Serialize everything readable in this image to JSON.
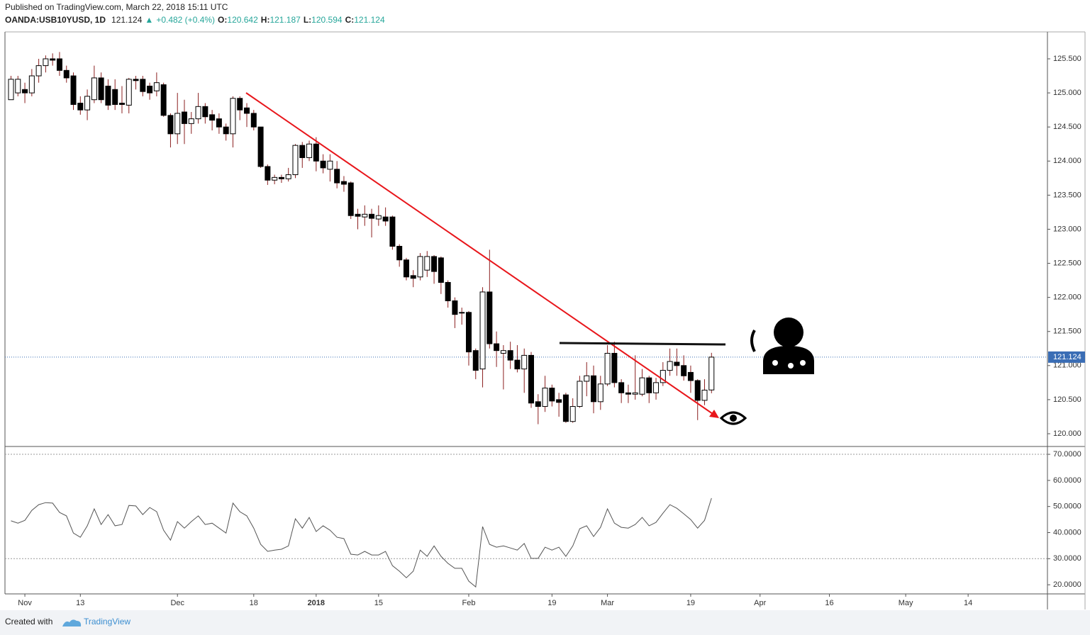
{
  "header": {
    "published": "Published on TradingView.com, March 22, 2018 15:11 UTC",
    "symbol": "OANDA:USB10YUSD, 1D",
    "price": "121.124",
    "arrow": "▲",
    "change": "+0.482 (+0.4%)",
    "ohlc": [
      {
        "label": "O:",
        "value": "120.642"
      },
      {
        "label": "H:",
        "value": "121.187"
      },
      {
        "label": "L:",
        "value": "120.594"
      },
      {
        "label": "C:",
        "value": "121.124"
      }
    ]
  },
  "footer": {
    "created": "Created with",
    "brand": "TradingView"
  },
  "chart_data": {
    "type": "candlestick",
    "categories": [
      null,
      null,
      "Nov",
      null,
      null,
      null,
      null,
      null,
      null,
      null,
      "13",
      null,
      null,
      null,
      null,
      null,
      null,
      null,
      null,
      null,
      null,
      null,
      null,
      null,
      "Dec",
      null,
      null,
      null,
      null,
      null,
      null,
      null,
      null,
      null,
      null,
      "18",
      null,
      null,
      null,
      null,
      null,
      null,
      null,
      null,
      "2018",
      null,
      null,
      null,
      null,
      null,
      null,
      null,
      null,
      "15",
      null,
      null,
      null,
      null,
      null,
      null,
      null,
      null,
      null,
      null,
      null,
      null,
      "Feb",
      null,
      null,
      null,
      null,
      null,
      null,
      null,
      null,
      null,
      null,
      null,
      "19",
      null,
      null,
      null,
      null,
      null,
      null,
      null,
      "Mar",
      null,
      null,
      null,
      null,
      null,
      null,
      null,
      null,
      null,
      null,
      null,
      "19",
      null,
      null,
      null,
      null,
      null,
      null,
      null,
      null,
      null,
      "Apr",
      null,
      null,
      null,
      null,
      null,
      null,
      null,
      null,
      null,
      "16",
      null,
      null,
      null,
      null,
      null,
      null,
      null,
      null,
      null,
      null,
      "May",
      null,
      null,
      null,
      null,
      null,
      null,
      null,
      null,
      "14"
    ],
    "open": [
      124.9,
      125.0,
      125.05,
      125.0,
      125.25,
      125.4,
      125.5,
      125.5,
      125.33,
      125.25,
      124.85,
      124.75,
      124.9,
      125.22,
      125.1,
      125.05,
      124.85,
      124.82,
      125.2,
      125.2,
      125.1,
      125.03,
      125.12,
      124.67,
      124.4,
      124.72,
      124.55,
      124.62,
      124.8,
      124.68,
      124.62,
      124.5,
      124.4,
      124.92,
      124.78,
      124.7,
      124.5,
      123.92,
      123.72,
      123.76,
      123.74,
      123.8,
      124.23,
      124.05,
      124.25,
      124.0,
      123.88,
      123.88,
      123.7,
      123.68,
      123.22,
      123.18,
      123.22,
      123.15,
      123.18,
      123.18,
      122.75,
      122.55,
      122.32,
      122.3,
      122.4,
      122.6,
      122.58,
      122.22,
      121.95,
      121.78,
      121.78,
      121.22,
      120.95,
      122.08,
      121.32,
      121.18,
      121.22,
      121.08,
      120.95,
      121.15,
      120.47,
      120.4,
      120.67,
      120.5,
      120.57,
      120.18,
      120.4,
      120.77,
      120.85,
      120.47,
      120.73,
      121.18,
      120.75,
      120.6,
      120.58,
      120.58,
      120.82,
      120.6,
      120.75,
      120.93,
      121.05,
      121.0,
      120.9,
      120.78,
      120.49,
      120.642,
      null,
      null,
      null,
      null,
      null,
      null,
      null,
      null,
      null,
      null,
      null,
      null,
      null,
      null,
      null,
      null,
      null,
      null,
      null,
      null,
      null,
      null,
      null,
      null,
      null,
      null,
      null,
      null,
      null,
      null,
      null,
      null,
      null,
      null,
      null,
      null,
      null
    ],
    "high": [
      125.25,
      125.25,
      125.15,
      125.35,
      125.5,
      125.55,
      125.58,
      125.6,
      125.4,
      125.3,
      124.95,
      125.05,
      125.4,
      125.3,
      125.2,
      125.2,
      125.1,
      125.22,
      125.25,
      125.25,
      125.15,
      125.3,
      125.15,
      124.7,
      125.0,
      124.9,
      124.72,
      125.0,
      124.85,
      124.75,
      124.7,
      124.55,
      124.95,
      124.95,
      124.85,
      124.75,
      124.5,
      123.95,
      123.8,
      123.8,
      123.9,
      124.25,
      124.28,
      124.3,
      124.35,
      124.1,
      124.1,
      124.0,
      123.78,
      123.7,
      123.3,
      123.35,
      123.3,
      123.35,
      123.32,
      123.2,
      122.78,
      122.58,
      122.4,
      122.65,
      122.68,
      122.62,
      122.6,
      122.25,
      122.0,
      121.85,
      121.8,
      121.25,
      122.15,
      122.7,
      121.5,
      121.3,
      121.35,
      121.3,
      121.25,
      121.2,
      120.58,
      120.85,
      120.72,
      120.6,
      120.6,
      120.52,
      120.85,
      121.05,
      121.0,
      120.85,
      121.3,
      121.35,
      120.8,
      120.72,
      121.15,
      120.95,
      120.85,
      120.82,
      121.05,
      121.25,
      121.25,
      121.15,
      121.0,
      120.8,
      120.8,
      121.187,
      null,
      null,
      null,
      null,
      null,
      null,
      null,
      null,
      null,
      null,
      null,
      null,
      null,
      null,
      null,
      null,
      null,
      null,
      null,
      null,
      null,
      null,
      null,
      null,
      null,
      null,
      null,
      null,
      null,
      null,
      null,
      null,
      null,
      null,
      null,
      null,
      null
    ],
    "low": [
      124.9,
      124.95,
      124.85,
      124.95,
      125.15,
      125.3,
      125.4,
      125.25,
      125.15,
      124.75,
      124.68,
      124.6,
      124.85,
      124.85,
      124.75,
      124.75,
      124.7,
      124.7,
      125.05,
      124.95,
      124.9,
      124.95,
      124.65,
      124.2,
      124.25,
      124.25,
      124.4,
      124.55,
      124.55,
      124.45,
      124.4,
      124.3,
      124.2,
      124.6,
      124.5,
      124.45,
      123.9,
      123.65,
      123.66,
      123.68,
      123.7,
      123.75,
      123.9,
      124.0,
      123.85,
      123.82,
      123.7,
      123.6,
      123.55,
      123.15,
      123.0,
      123.05,
      122.88,
      123.05,
      123.05,
      122.7,
      122.45,
      122.25,
      122.15,
      122.25,
      122.3,
      122.2,
      122.05,
      121.85,
      121.55,
      121.6,
      121.0,
      120.8,
      120.68,
      121.25,
      120.98,
      120.65,
      120.95,
      120.9,
      120.6,
      120.38,
      120.14,
      120.32,
      120.4,
      120.25,
      120.16,
      120.16,
      120.38,
      120.55,
      120.3,
      120.35,
      120.7,
      120.68,
      120.45,
      120.45,
      120.5,
      120.55,
      120.45,
      120.5,
      120.7,
      120.85,
      120.85,
      120.78,
      120.6,
      120.2,
      120.42,
      120.594,
      null,
      null,
      null,
      null,
      null,
      null,
      null,
      null,
      null,
      null,
      null,
      null,
      null,
      null,
      null,
      null,
      null,
      null,
      null,
      null,
      null,
      null,
      null,
      null,
      null,
      null,
      null,
      null,
      null,
      null,
      null,
      null,
      null,
      null,
      null,
      null,
      null
    ],
    "close": [
      125.2,
      125.2,
      125.0,
      125.25,
      125.4,
      125.5,
      125.48,
      125.33,
      125.22,
      124.83,
      124.75,
      124.95,
      125.22,
      124.9,
      124.82,
      124.83,
      124.83,
      125.2,
      125.18,
      125.02,
      125.0,
      125.15,
      124.67,
      124.4,
      124.7,
      124.55,
      124.62,
      124.8,
      124.65,
      124.6,
      124.5,
      124.4,
      124.92,
      124.75,
      124.7,
      124.5,
      123.92,
      123.72,
      123.76,
      123.74,
      123.8,
      124.23,
      124.05,
      124.25,
      124.0,
      123.9,
      124.0,
      123.68,
      123.66,
      123.2,
      123.19,
      123.22,
      123.16,
      123.2,
      123.12,
      122.75,
      122.55,
      122.3,
      122.28,
      122.6,
      122.6,
      122.38,
      122.22,
      121.95,
      121.75,
      121.77,
      121.2,
      120.93,
      122.08,
      121.32,
      121.22,
      121.22,
      121.08,
      120.95,
      121.15,
      120.45,
      120.4,
      120.67,
      120.48,
      120.46,
      120.18,
      120.4,
      120.77,
      120.85,
      120.47,
      120.73,
      121.18,
      120.75,
      120.6,
      120.58,
      120.6,
      120.82,
      120.6,
      120.75,
      120.93,
      121.06,
      121.0,
      120.85,
      120.78,
      120.49,
      120.64,
      121.124,
      null,
      null,
      null,
      null,
      null,
      null,
      null,
      null,
      null,
      null,
      null,
      null,
      null,
      null,
      null,
      null,
      null,
      null,
      null,
      null,
      null,
      null,
      null,
      null,
      null,
      null,
      null,
      null,
      null,
      null,
      null,
      null,
      null,
      null,
      null,
      null,
      null
    ],
    "up_color": "#ffffff",
    "down_color": "#000000",
    "outline_color": "#000000",
    "wick_color": "#8b2020",
    "ylim": [
      119.813,
      125.895
    ],
    "yticks": [
      {
        "value": 120.0,
        "label": "120.000"
      },
      {
        "value": 120.5,
        "label": "120.500"
      },
      {
        "value": 121.0,
        "label": "121.000"
      },
      {
        "value": 121.5,
        "label": "121.500"
      },
      {
        "value": 122.0,
        "label": "122.000"
      },
      {
        "value": 122.5,
        "label": "122.500"
      },
      {
        "value": 123.0,
        "label": "123.000"
      },
      {
        "value": 123.5,
        "label": "123.500"
      },
      {
        "value": 124.0,
        "label": "124.000"
      },
      {
        "value": 124.5,
        "label": "124.500"
      },
      {
        "value": 125.0,
        "label": "125.000"
      },
      {
        "value": 125.5,
        "label": "125.500"
      }
    ],
    "last_price": 121.124,
    "last_price_color": "#3a6db5",
    "rsi": {
      "type": "line",
      "color": "#555555",
      "values": [
        44.5,
        43.6,
        44.7,
        48.5,
        50.7,
        51.5,
        51.3,
        47.7,
        46.4,
        39.8,
        38.2,
        42.6,
        49.1,
        43.1,
        46.9,
        42.6,
        43.1,
        50.4,
        50.2,
        46.9,
        49.6,
        48.0,
        40.9,
        37.1,
        44.2,
        41.7,
        44.2,
        46.4,
        43.1,
        43.6,
        41.7,
        39.8,
        51.3,
        48.0,
        46.4,
        41.7,
        35.5,
        32.8,
        33.3,
        33.6,
        34.9,
        45.3,
        41.7,
        45.8,
        40.4,
        42.6,
        40.9,
        38.2,
        37.7,
        31.7,
        31.4,
        32.8,
        31.4,
        31.4,
        32.8,
        27.3,
        25.2,
        22.7,
        25.2,
        33.3,
        30.9,
        34.9,
        30.9,
        28.2,
        26.3,
        26.3,
        21.4,
        19.2,
        42.3,
        35.5,
        34.4,
        34.9,
        34.1,
        33.3,
        35.8,
        30.1,
        30.1,
        34.4,
        33.3,
        34.4,
        30.9,
        34.9,
        41.5,
        42.6,
        38.5,
        42.0,
        49.1,
        43.6,
        42.0,
        41.7,
        43.1,
        45.8,
        42.6,
        43.9,
        47.4,
        50.7,
        49.3,
        47.2,
        45.0,
        41.7,
        44.7,
        53.2,
        null,
        null,
        null,
        null,
        null,
        null,
        null,
        null,
        null,
        null,
        null,
        null,
        null,
        null,
        null,
        null,
        null,
        null,
        null,
        null,
        null,
        null,
        null,
        null,
        null,
        null,
        null,
        null,
        null,
        null,
        null,
        null,
        null,
        null,
        null,
        null,
        null
      ],
      "ylim": [
        16.5,
        73.0
      ],
      "yticks": [
        {
          "value": 20,
          "label": "20.0000"
        },
        {
          "value": 30,
          "label": "30.0000"
        },
        {
          "value": 40,
          "label": "40.0000"
        },
        {
          "value": 50,
          "label": "50.0000"
        },
        {
          "value": 60,
          "label": "60.0000"
        },
        {
          "value": 70,
          "label": "70.0000"
        }
      ],
      "bands": [
        30,
        70
      ]
    }
  }
}
